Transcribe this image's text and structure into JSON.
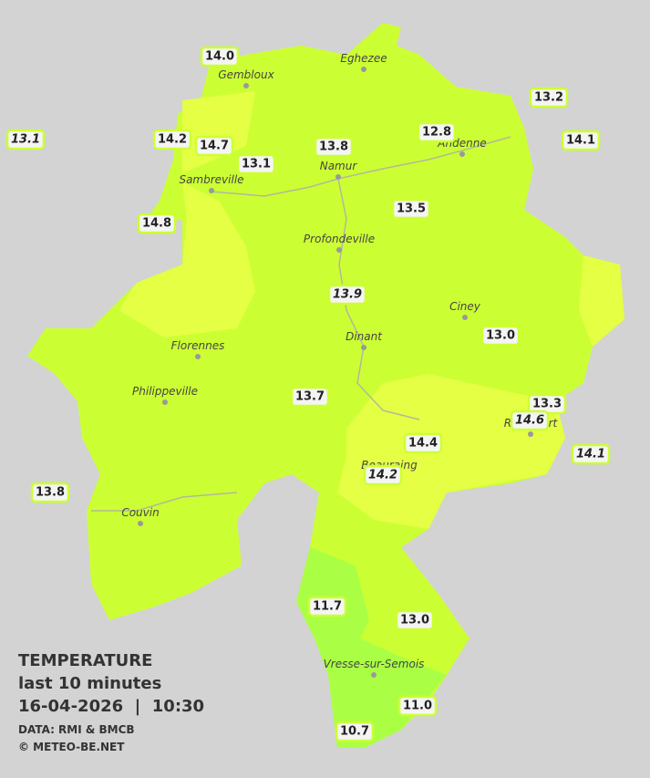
{
  "cities": [
    "Eghezee",
    "Gembloux",
    "Andenne",
    "Namur",
    "Sambreville",
    "Profondeville",
    "Ciney",
    "Florennes",
    "Dinant",
    "Philippeville",
    "Rochefort",
    "Beauraing",
    "Couvin",
    "Vresse-sur-Semois"
  ],
  "stations": [
    {
      "label": "14.0"
    },
    {
      "label": "13.2"
    },
    {
      "label": "13.1",
      "italic": true
    },
    {
      "label": "14.2"
    },
    {
      "label": "14.7"
    },
    {
      "label": "12.8"
    },
    {
      "label": "14.1"
    },
    {
      "label": "13.8"
    },
    {
      "label": "13.1"
    },
    {
      "label": "14.8"
    },
    {
      "label": "13.5"
    },
    {
      "label": "13.9",
      "italic": true
    },
    {
      "label": "13.0"
    },
    {
      "label": "13.7"
    },
    {
      "label": "13.3"
    },
    {
      "label": "14.6",
      "italic": true
    },
    {
      "label": "14.4"
    },
    {
      "label": "14.1",
      "italic": true
    },
    {
      "label": "14.2",
      "italic": true
    },
    {
      "label": "13.8"
    },
    {
      "label": "11.7"
    },
    {
      "label": "13.0"
    },
    {
      "label": "11.0"
    },
    {
      "label": "10.7"
    }
  ],
  "legend": {
    "title": "TEMPERATURE",
    "period": "last 10 minutes",
    "timestamp": "16-04-2026  |  10:30",
    "source": "DATA: RMI & BMCB",
    "copyright": "© METEO-BE.NET"
  }
}
